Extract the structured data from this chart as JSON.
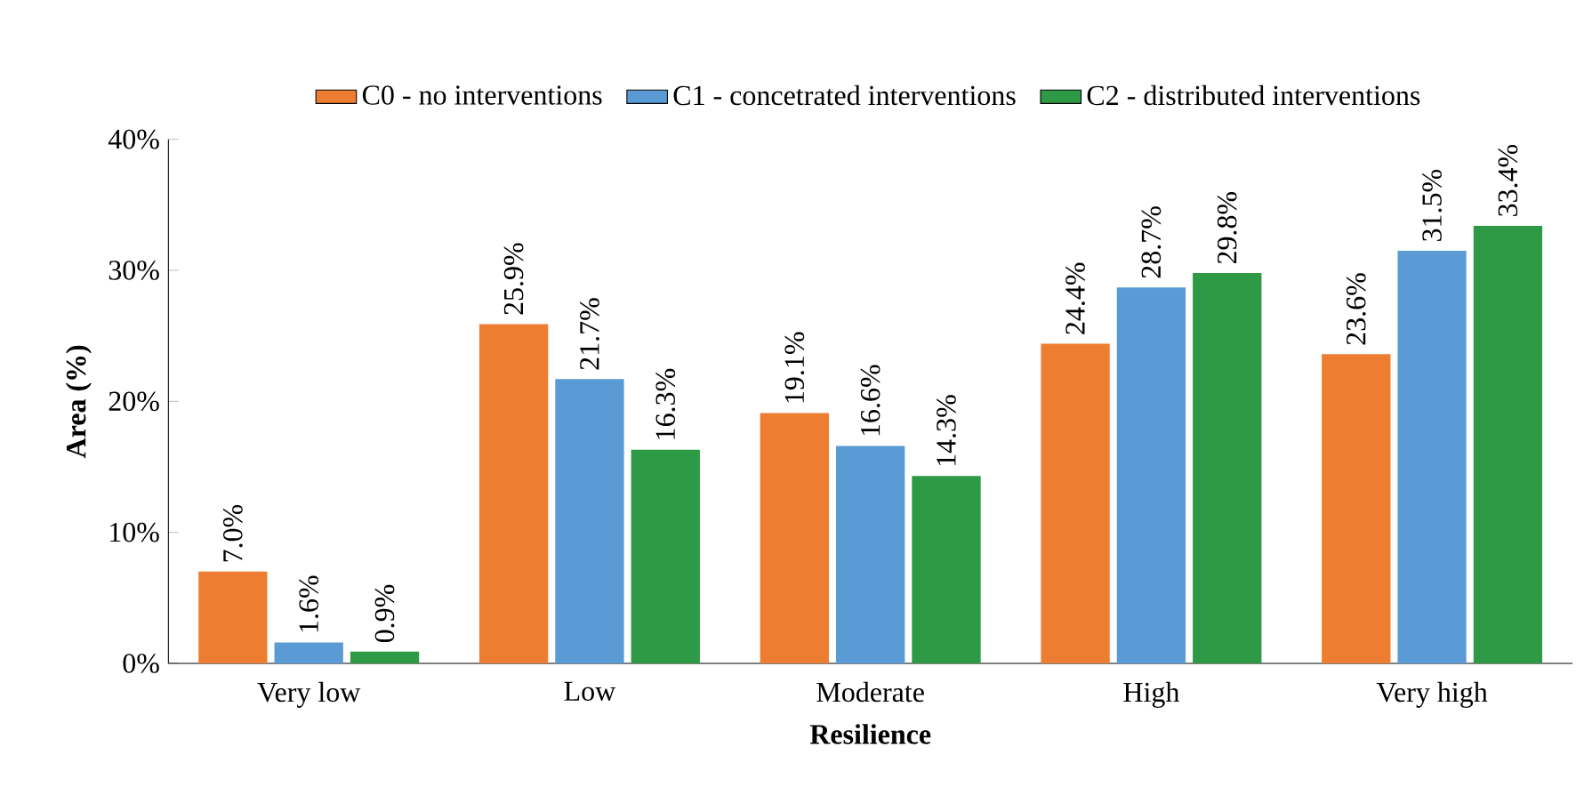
{
  "chart_data": {
    "type": "bar",
    "xlabel": "Resilience",
    "ylabel": "Area (%)",
    "categories": [
      "Very low",
      "Low",
      "Moderate",
      "High",
      "Very high"
    ],
    "series": [
      {
        "name": "C0 - no interventions",
        "color": "#ed7d31",
        "values": [
          7.0,
          25.9,
          19.1,
          24.4,
          23.6
        ],
        "value_labels": [
          "7.0%",
          "25.9%",
          "19.1%",
          "24.4%",
          "23.6%"
        ]
      },
      {
        "name": "C1 - concetrated interventions",
        "color": "#5b9bd5",
        "values": [
          1.6,
          21.7,
          16.6,
          28.7,
          31.5
        ],
        "value_labels": [
          "1.6%",
          "21.7%",
          "16.6%",
          "28.7%",
          "31.5%"
        ]
      },
      {
        "name": "C2 - distributed interventions",
        "color": "#2e9a45",
        "values": [
          0.9,
          16.3,
          14.3,
          29.8,
          33.4
        ],
        "value_labels": [
          "0.9%",
          "16.3%",
          "14.3%",
          "29.8%",
          "33.4%"
        ]
      }
    ],
    "ylim": [
      0,
      40
    ],
    "yticks": [
      {
        "value": 0,
        "label": "0%"
      },
      {
        "value": 10,
        "label": "10%"
      },
      {
        "value": 20,
        "label": "20%"
      },
      {
        "value": 30,
        "label": "30%"
      },
      {
        "value": 40,
        "label": "40%"
      }
    ],
    "grid": false,
    "legend": "top"
  }
}
